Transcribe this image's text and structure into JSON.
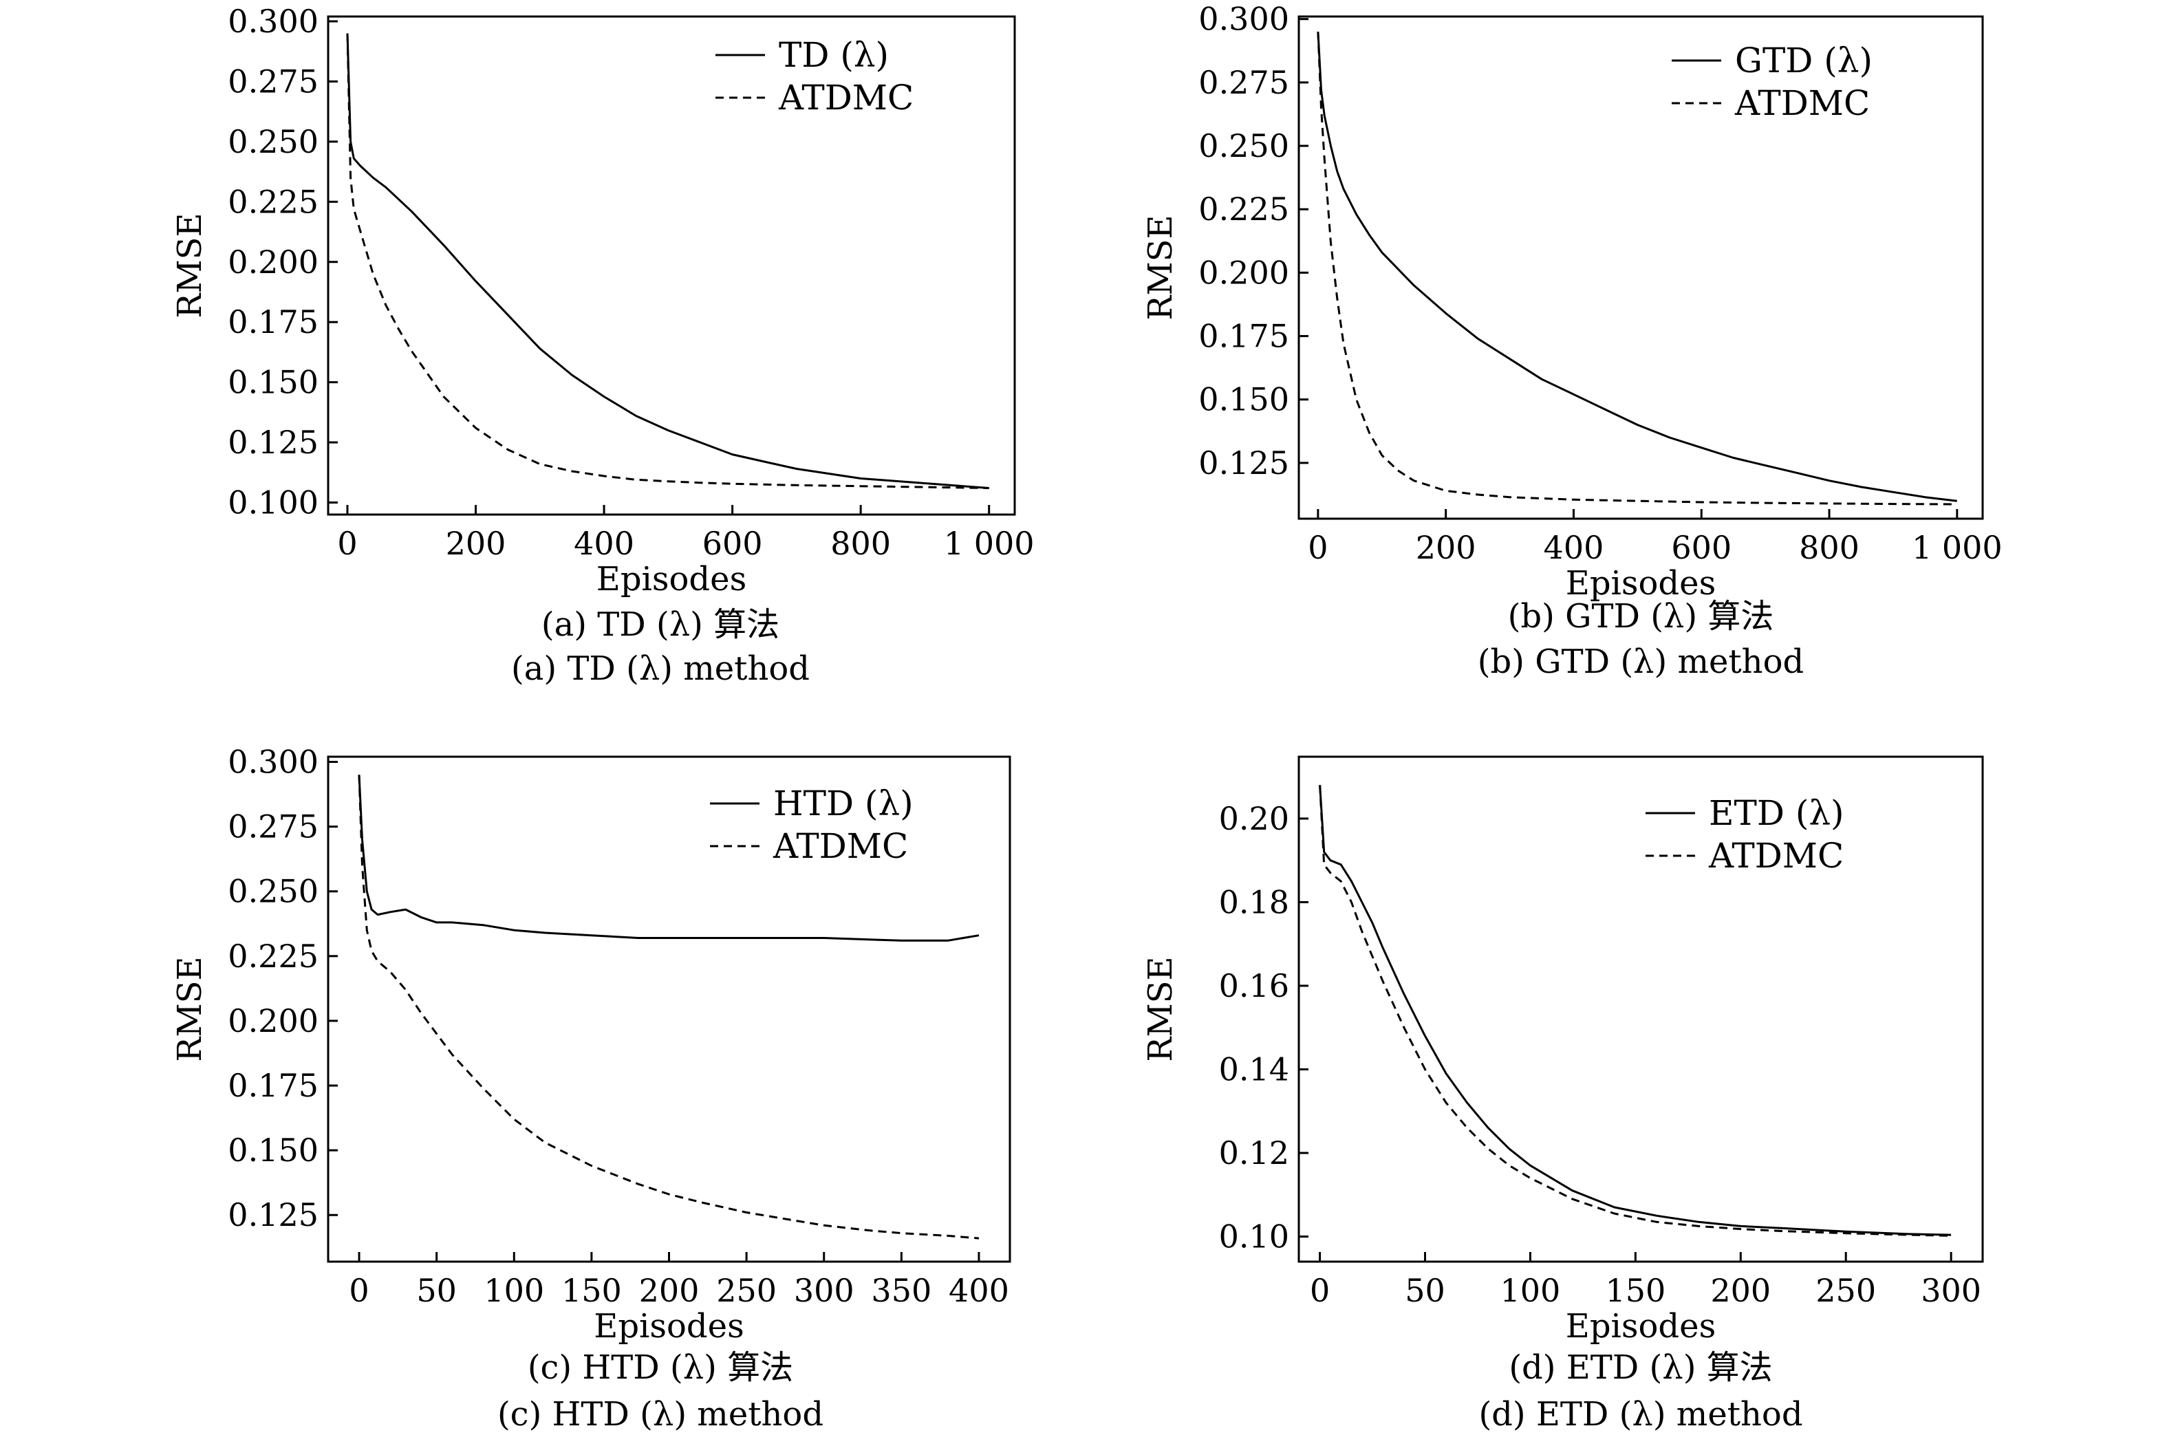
{
  "chart_data": [
    {
      "id": "a",
      "type": "line",
      "xlabel": "Episodes",
      "ylabel": "RMSE",
      "xlim": [
        -30,
        1040
      ],
      "ylim": [
        0.095,
        0.302
      ],
      "x_ticks": [
        0,
        200,
        400,
        600,
        800,
        1000
      ],
      "x_tick_labels": [
        "0",
        "200",
        "400",
        "600",
        "800",
        "1 000"
      ],
      "y_ticks": [
        0.1,
        0.125,
        0.15,
        0.175,
        0.2,
        0.225,
        0.25,
        0.275,
        0.3
      ],
      "y_tick_labels": [
        "0.100",
        "0.125",
        "0.150",
        "0.175",
        "0.200",
        "0.225",
        "0.250",
        "0.275",
        "0.300"
      ],
      "legend_position": "top-right",
      "caption_cn": "(a) TD (λ) 算法",
      "caption_en": "(a) TD (λ) method",
      "series": [
        {
          "name": "TD (λ)",
          "style": "solid",
          "x": [
            0,
            5,
            10,
            20,
            40,
            60,
            80,
            100,
            150,
            200,
            250,
            300,
            350,
            400,
            450,
            500,
            550,
            600,
            650,
            700,
            750,
            800,
            850,
            900,
            950,
            1000
          ],
          "y": [
            0.295,
            0.25,
            0.243,
            0.24,
            0.235,
            0.231,
            0.226,
            0.221,
            0.207,
            0.192,
            0.178,
            0.164,
            0.153,
            0.144,
            0.136,
            0.13,
            0.125,
            0.12,
            0.117,
            0.114,
            0.112,
            0.11,
            0.109,
            0.108,
            0.107,
            0.106
          ]
        },
        {
          "name": "ATDMC",
          "style": "dashed",
          "x": [
            0,
            5,
            10,
            20,
            40,
            60,
            80,
            100,
            150,
            200,
            250,
            300,
            350,
            400,
            450,
            500,
            550,
            600,
            650,
            700,
            750,
            800,
            850,
            900,
            950,
            1000
          ],
          "y": [
            0.295,
            0.235,
            0.222,
            0.213,
            0.195,
            0.182,
            0.172,
            0.163,
            0.144,
            0.131,
            0.122,
            0.116,
            0.113,
            0.111,
            0.1095,
            0.1088,
            0.1082,
            0.1078,
            0.1075,
            0.1072,
            0.107,
            0.1068,
            0.1066,
            0.1064,
            0.1062,
            0.106
          ]
        }
      ]
    },
    {
      "id": "b",
      "type": "line",
      "xlabel": "Episodes",
      "ylabel": "RMSE",
      "xlim": [
        -30,
        1040
      ],
      "ylim": [
        0.103,
        0.301
      ],
      "x_ticks": [
        0,
        200,
        400,
        600,
        800,
        1000
      ],
      "x_tick_labels": [
        "0",
        "200",
        "400",
        "600",
        "800",
        "1 000"
      ],
      "y_ticks": [
        0.125,
        0.15,
        0.175,
        0.2,
        0.225,
        0.25,
        0.275,
        0.3
      ],
      "y_tick_labels": [
        "0.125",
        "0.150",
        "0.175",
        "0.200",
        "0.225",
        "0.250",
        "0.275",
        "0.300"
      ],
      "legend_position": "top-right",
      "caption_cn": "(b) GTD (λ) 算法",
      "caption_en": "(b) GTD (λ) method",
      "series": [
        {
          "name": "GTD (λ)",
          "style": "solid",
          "x": [
            0,
            5,
            10,
            20,
            30,
            40,
            60,
            80,
            100,
            150,
            200,
            250,
            300,
            350,
            400,
            450,
            500,
            550,
            600,
            650,
            700,
            750,
            800,
            850,
            900,
            950,
            1000
          ],
          "y": [
            0.295,
            0.272,
            0.262,
            0.25,
            0.24,
            0.233,
            0.223,
            0.215,
            0.208,
            0.195,
            0.184,
            0.174,
            0.166,
            0.158,
            0.152,
            0.146,
            0.14,
            0.135,
            0.131,
            0.127,
            0.124,
            0.121,
            0.118,
            0.1155,
            0.1135,
            0.1115,
            0.11
          ]
        },
        {
          "name": "ATDMC",
          "style": "dashed",
          "x": [
            0,
            5,
            10,
            20,
            30,
            40,
            60,
            80,
            100,
            125,
            150,
            200,
            250,
            300,
            400,
            500,
            600,
            700,
            800,
            900,
            1000
          ],
          "y": [
            0.295,
            0.265,
            0.245,
            0.212,
            0.19,
            0.172,
            0.15,
            0.137,
            0.128,
            0.122,
            0.118,
            0.114,
            0.1125,
            0.1115,
            0.1105,
            0.11,
            0.1095,
            0.1092,
            0.109,
            0.1088,
            0.1087
          ]
        }
      ]
    },
    {
      "id": "c",
      "type": "line",
      "xlabel": "Episodes",
      "ylabel": "RMSE",
      "xlim": [
        -20,
        420
      ],
      "ylim": [
        0.107,
        0.302
      ],
      "x_ticks": [
        0,
        50,
        100,
        150,
        200,
        250,
        300,
        350,
        400
      ],
      "x_tick_labels": [
        "0",
        "50",
        "100",
        "150",
        "200",
        "250",
        "300",
        "350",
        "400"
      ],
      "y_ticks": [
        0.125,
        0.15,
        0.175,
        0.2,
        0.225,
        0.25,
        0.275,
        0.3
      ],
      "y_tick_labels": [
        "0.125",
        "0.150",
        "0.175",
        "0.200",
        "0.225",
        "0.250",
        "0.275",
        "0.300"
      ],
      "legend_position": "top-right",
      "caption_cn": "(c) HTD (λ) 算法",
      "caption_en": "(c) HTD (λ) method",
      "series": [
        {
          "name": "HTD (λ)",
          "style": "solid",
          "x": [
            0,
            2,
            5,
            8,
            12,
            20,
            30,
            40,
            50,
            60,
            80,
            100,
            120,
            150,
            180,
            200,
            250,
            300,
            350,
            380,
            400
          ],
          "y": [
            0.295,
            0.27,
            0.25,
            0.243,
            0.241,
            0.242,
            0.243,
            0.24,
            0.238,
            0.238,
            0.237,
            0.235,
            0.234,
            0.233,
            0.232,
            0.232,
            0.232,
            0.232,
            0.231,
            0.231,
            0.233
          ]
        },
        {
          "name": "ATDMC",
          "style": "dashed",
          "x": [
            0,
            2,
            5,
            8,
            12,
            20,
            30,
            40,
            50,
            60,
            80,
            100,
            120,
            150,
            180,
            200,
            220,
            250,
            280,
            300,
            330,
            350,
            380,
            400
          ],
          "y": [
            0.295,
            0.26,
            0.235,
            0.227,
            0.223,
            0.219,
            0.212,
            0.203,
            0.195,
            0.187,
            0.174,
            0.162,
            0.153,
            0.144,
            0.137,
            0.133,
            0.13,
            0.126,
            0.123,
            0.121,
            0.119,
            0.118,
            0.117,
            0.116
          ]
        }
      ]
    },
    {
      "id": "d",
      "type": "line",
      "xlabel": "Episodes",
      "ylabel": "RMSE",
      "xlim": [
        -10,
        315
      ],
      "ylim": [
        0.094,
        0.2148
      ],
      "x_ticks": [
        0,
        50,
        100,
        150,
        200,
        250,
        300
      ],
      "x_tick_labels": [
        "0",
        "50",
        "100",
        "150",
        "200",
        "250",
        "300"
      ],
      "y_ticks": [
        0.1,
        0.12,
        0.14,
        0.16,
        0.18,
        0.2
      ],
      "y_tick_labels": [
        "0.10",
        "0.12",
        "0.14",
        "0.16",
        "0.18",
        "0.20"
      ],
      "legend_position": "top-right",
      "caption_cn": "(d) ETD (λ) 算法",
      "caption_en": "(d) ETD (λ) method",
      "series": [
        {
          "name": "ETD (λ)",
          "style": "solid",
          "x": [
            0,
            2,
            5,
            10,
            15,
            20,
            25,
            30,
            40,
            50,
            60,
            70,
            80,
            90,
            100,
            120,
            140,
            160,
            180,
            200,
            220,
            250,
            280,
            300
          ],
          "y": [
            0.208,
            0.192,
            0.19,
            0.189,
            0.185,
            0.18,
            0.175,
            0.169,
            0.158,
            0.148,
            0.139,
            0.132,
            0.126,
            0.121,
            0.117,
            0.111,
            0.107,
            0.105,
            0.1035,
            0.1025,
            0.102,
            0.1012,
            0.1006,
            0.1004
          ]
        },
        {
          "name": "ATDMC",
          "style": "dashed",
          "x": [
            0,
            2,
            5,
            10,
            15,
            20,
            25,
            30,
            40,
            50,
            60,
            70,
            80,
            90,
            100,
            120,
            140,
            160,
            180,
            200,
            220,
            250,
            280,
            300
          ],
          "y": [
            0.208,
            0.189,
            0.187,
            0.185,
            0.18,
            0.173,
            0.167,
            0.161,
            0.15,
            0.14,
            0.132,
            0.126,
            0.121,
            0.117,
            0.114,
            0.109,
            0.1055,
            0.1035,
            0.1025,
            0.1018,
            0.1013,
            0.1008,
            0.1004,
            0.1002
          ]
        }
      ]
    }
  ]
}
